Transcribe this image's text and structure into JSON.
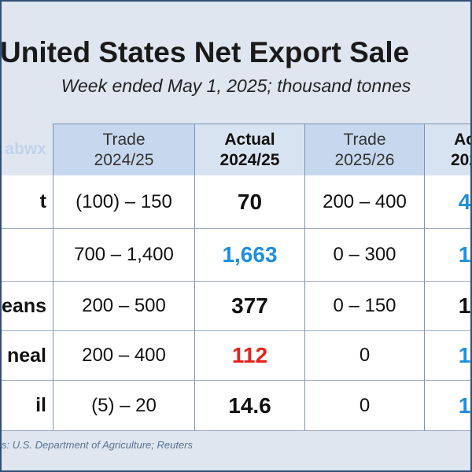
{
  "header": {
    "title": "United States Net Export Sale",
    "subtitle": "Week ended May 1, 2025; thousand tonnes"
  },
  "table": {
    "columns": [
      "abwx",
      "Trade\n2024/25",
      "Actual\n2024/25",
      "Trade\n2025/26",
      "Ac\n202"
    ],
    "rows": [
      {
        "label": "t",
        "cells": [
          "(100) – 150",
          "70",
          "200 – 400",
          "4"
        ]
      },
      {
        "cells": [
          "700 – 1,400",
          "1,663",
          "0 – 300",
          "1"
        ]
      },
      {
        "label": "eans",
        "cells": [
          "200 – 500",
          "377",
          "0 – 150",
          "1"
        ]
      },
      {
        "label": "neal",
        "cells": [
          "200 – 400",
          "112",
          "0",
          "1"
        ]
      },
      {
        "label": "il",
        "cells": [
          "(5) – 20",
          "14.6",
          "0",
          "1"
        ]
      }
    ]
  },
  "footer": {
    "source": "s: U.S. Department of Agriculture; Reuters"
  }
}
